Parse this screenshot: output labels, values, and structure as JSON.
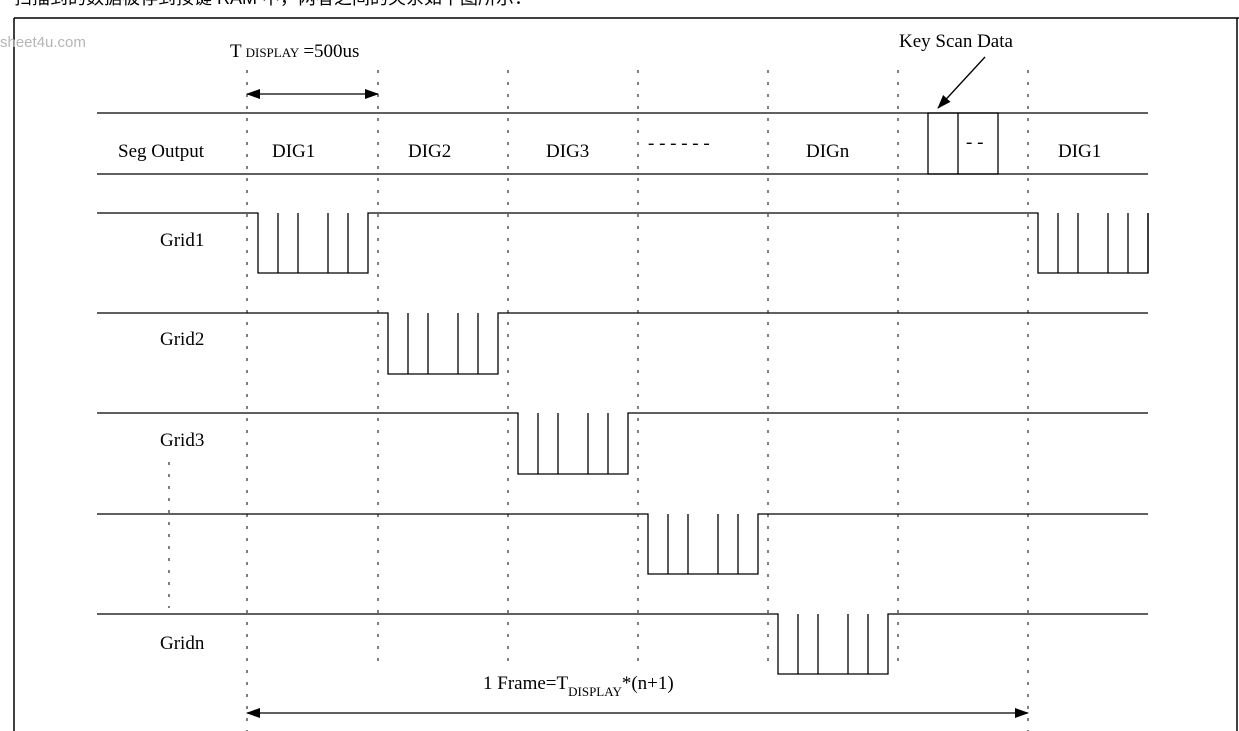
{
  "header_text": "扫描到的数据被存到按键 RAM 中，两者之间的关系如下图所示：",
  "watermark": "sheet4u.com",
  "t_display": {
    "prefix": "T",
    "sub": "DISPLAY",
    "suffix": "=500us"
  },
  "key_scan_label": "Key Scan Data",
  "seg_output_label": "Seg Output",
  "digits": [
    "DIG1",
    "DIG2",
    "DIG3",
    "- - - - - -",
    "DIGn",
    "- -",
    "DIG1"
  ],
  "grids": [
    "Grid1",
    "Grid2",
    "Grid3",
    "",
    "Gridn"
  ],
  "frame": {
    "prefix": "1 Frame=T",
    "sub": "DISPLAY",
    "suffix": "*(n+1)"
  }
}
